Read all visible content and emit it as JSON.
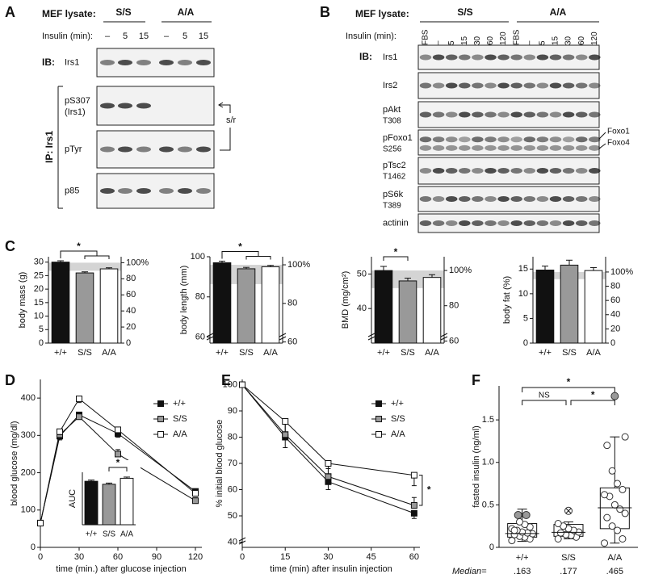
{
  "panel_a": {
    "letter": "A",
    "lysate_label": "MEF lysate:",
    "groups": [
      "S/S",
      "A/A"
    ],
    "insulin_label": "Insulin (min):",
    "times": [
      "–",
      "5",
      "15",
      "–",
      "5",
      "15"
    ],
    "ib_label": "IB:",
    "ip_label": "IP: Irs1",
    "rows": [
      {
        "label": "Irs1"
      },
      {
        "label": "pS307",
        "sublabel": "(Irs1)"
      },
      {
        "label": "pTyr"
      },
      {
        "label": "p85"
      }
    ],
    "annotation": "s/r"
  },
  "panel_b": {
    "letter": "B",
    "lysate_label": "MEF lysate:",
    "groups": [
      "S/S",
      "A/A"
    ],
    "insulin_label": "Insulin (min):",
    "times": [
      "FBS",
      "–",
      "5",
      "15",
      "30",
      "60",
      "120",
      "FBS",
      "–",
      "5",
      "15",
      "30",
      "60",
      "120"
    ],
    "ib_label": "IB:",
    "rows": [
      {
        "label": "Irs1"
      },
      {
        "label": "Irs2"
      },
      {
        "label": "pAkt",
        "sublabel": "T308"
      },
      {
        "label": "pFoxo1",
        "sublabel": "S256"
      },
      {
        "label": "pTsc2",
        "sublabel": "T1462"
      },
      {
        "label": "pS6k",
        "sublabel": "T389"
      },
      {
        "label": "actinin"
      }
    ],
    "side_labels": [
      "Foxo1",
      "Foxo4"
    ]
  },
  "panel_c": {
    "letter": "C"
  },
  "panel_d": {
    "letter": "D"
  },
  "panel_e": {
    "letter": "E"
  },
  "panel_f": {
    "letter": "F"
  },
  "chart_data": [
    {
      "type": "bar",
      "ylabel": "body mass (g)",
      "categories": [
        "+/+",
        "S/S",
        "A/A"
      ],
      "values": [
        30,
        26,
        27.5
      ],
      "errors": [
        0.5,
        0.4,
        0.4
      ],
      "colors": [
        "#111111",
        "#999999",
        "#ffffff"
      ],
      "ylim": [
        0,
        32
      ],
      "yticks": [
        0,
        5,
        10,
        15,
        20,
        25,
        30
      ],
      "y2lim": [
        0,
        107.4
      ],
      "y2ticks": [
        0,
        20,
        40,
        60,
        80,
        {
          "value": 100,
          "label": "100%"
        }
      ],
      "y2_band": [
        90,
        100
      ],
      "annotation": "*"
    },
    {
      "type": "bar",
      "ylabel": "body length (mm)",
      "categories": [
        "+/+",
        "S/S",
        "A/A"
      ],
      "values": [
        97,
        94,
        95
      ],
      "errors": [
        0.8,
        0.7,
        0.7
      ],
      "colors": [
        "#111111",
        "#999999",
        "#ffffff"
      ],
      "ylim": [
        57,
        100
      ],
      "yticks": [
        60,
        80,
        100
      ],
      "axis_break": true,
      "y2lim": [
        59.4,
        104.2
      ],
      "y2ticks": [
        60,
        80,
        {
          "value": 100,
          "label": "100%"
        }
      ],
      "y2_band": [
        90,
        100
      ],
      "annotation": "*"
    },
    {
      "type": "bar",
      "ylabel": "BMD (mg/cm²)",
      "categories": [
        "+/+",
        "S/S",
        "A/A"
      ],
      "values": [
        51,
        48,
        49
      ],
      "errors": [
        1.2,
        0.8,
        0.8
      ],
      "colors": [
        "#111111",
        "#999999",
        "#ffffff"
      ],
      "ylim": [
        30,
        55
      ],
      "yticks": [
        40,
        50
      ],
      "axis_break": true,
      "y2lim": [
        58.8,
        107.8
      ],
      "y2ticks": [
        60,
        80,
        {
          "value": 100,
          "label": "100%"
        }
      ],
      "y2_band": [
        90,
        100
      ],
      "annotation": "*"
    },
    {
      "type": "bar",
      "ylabel": "body fat (%)",
      "categories": [
        "+/+",
        "S/S",
        "A/A"
      ],
      "values": [
        14.8,
        15.8,
        14.7
      ],
      "errors": [
        0.8,
        1.0,
        0.6
      ],
      "colors": [
        "#111111",
        "#999999",
        "#ffffff"
      ],
      "ylim": [
        0,
        17.5
      ],
      "yticks": [
        0,
        5,
        10,
        15
      ],
      "y2lim": [
        0,
        121.5
      ],
      "y2ticks": [
        0,
        20,
        40,
        60,
        80,
        {
          "value": 100,
          "label": "100%"
        }
      ],
      "y2_band": [
        90,
        100
      ]
    },
    {
      "type": "line",
      "ylabel": "blood glucose (mg/dl)",
      "xlabel": "time (min.) after glucose injection",
      "x": [
        0,
        15,
        30,
        60,
        120
      ],
      "xlim": [
        0,
        125
      ],
      "xticks": [
        0,
        30,
        60,
        90,
        120
      ],
      "ylim": [
        0,
        450
      ],
      "yticks": [
        0,
        100,
        200,
        300,
        400
      ],
      "series": [
        {
          "name": "+/+",
          "color": "#111111",
          "values": [
            65,
            298,
            355,
            305,
            150
          ],
          "errors": [
            6,
            10,
            10,
            10,
            8
          ]
        },
        {
          "name": "S/S",
          "color": "#999999",
          "values": [
            65,
            302,
            350,
            250,
            125
          ],
          "errors": [
            6,
            10,
            12,
            12,
            8
          ]
        },
        {
          "name": "A/A",
          "color": "#ffffff",
          "values": [
            65,
            310,
            398,
            315,
            145
          ],
          "errors": [
            6,
            8,
            10,
            12,
            8
          ]
        }
      ],
      "legend": "upper right"
    },
    {
      "type": "bar",
      "ylabel": "AUC",
      "categories": [
        "+/+",
        "S/S",
        "A/A"
      ],
      "values": [
        145,
        135,
        155
      ],
      "errors": [
        4,
        4,
        4
      ],
      "colors": [
        "#111111",
        "#999999",
        "#ffffff"
      ],
      "ylim": [
        0,
        175
      ],
      "annotation": "*"
    },
    {
      "type": "line",
      "ylabel": "% initial blood glucose",
      "xlabel": "time (min) after insulin injection",
      "x": [
        0,
        15,
        30,
        60
      ],
      "xlim": [
        0,
        62
      ],
      "xticks": [
        0,
        15,
        30,
        45,
        60
      ],
      "ylim": [
        38,
        102
      ],
      "yticks": [
        40,
        50,
        60,
        70,
        80,
        90,
        100
      ],
      "axis_break": true,
      "series": [
        {
          "name": "+/+",
          "color": "#111111",
          "values": [
            100,
            80,
            63,
            51
          ],
          "errors": [
            0,
            4,
            3,
            2
          ]
        },
        {
          "name": "S/S",
          "color": "#999999",
          "values": [
            100,
            81,
            65,
            54
          ],
          "errors": [
            0,
            4,
            3,
            3
          ]
        },
        {
          "name": "A/A",
          "color": "#ffffff",
          "values": [
            100,
            86,
            70,
            65.5
          ],
          "errors": [
            0,
            4,
            4,
            4
          ]
        }
      ],
      "legend": "upper right",
      "annotation": "*"
    },
    {
      "type": "box",
      "ylabel": "fasted insulin (ng/ml)",
      "categories": [
        "+/+",
        "S/S",
        "A/A"
      ],
      "ylim": [
        0,
        1.9
      ],
      "yticks": [
        0,
        0.5,
        {
          "value": 1,
          "label": "1.0"
        },
        1.5
      ],
      "q1": [
        0.12,
        0.13,
        0.22
      ],
      "q3": [
        0.28,
        0.27,
        0.7
      ],
      "whisker_low": [
        0.07,
        0.1,
        0.05
      ],
      "whisker_high": [
        0.45,
        0.3,
        1.3
      ],
      "medians": [
        0.163,
        0.177,
        0.465
      ],
      "median_labels": [
        ".163",
        ".177",
        ".465"
      ],
      "median_title": "Median=",
      "points": [
        [
          0.08,
          0.1,
          0.12,
          0.13,
          0.15,
          0.16,
          0.17,
          0.18,
          0.2,
          0.22,
          0.24,
          0.27,
          0.3,
          0.2
        ],
        [
          0.1,
          0.12,
          0.14,
          0.15,
          0.17,
          0.18,
          0.2,
          0.22,
          0.25,
          0.28
        ],
        [
          0.05,
          0.1,
          0.2,
          0.25,
          0.35,
          0.4,
          0.45,
          0.5,
          0.6,
          0.62,
          0.68,
          0.75,
          0.9,
          1.2,
          1.3
        ]
      ],
      "outliers": [
        [
          0.38,
          0.38
        ],
        [
          0.43
        ],
        [
          1.78
        ]
      ],
      "annotations": [
        "NS",
        "*",
        "*"
      ]
    }
  ]
}
